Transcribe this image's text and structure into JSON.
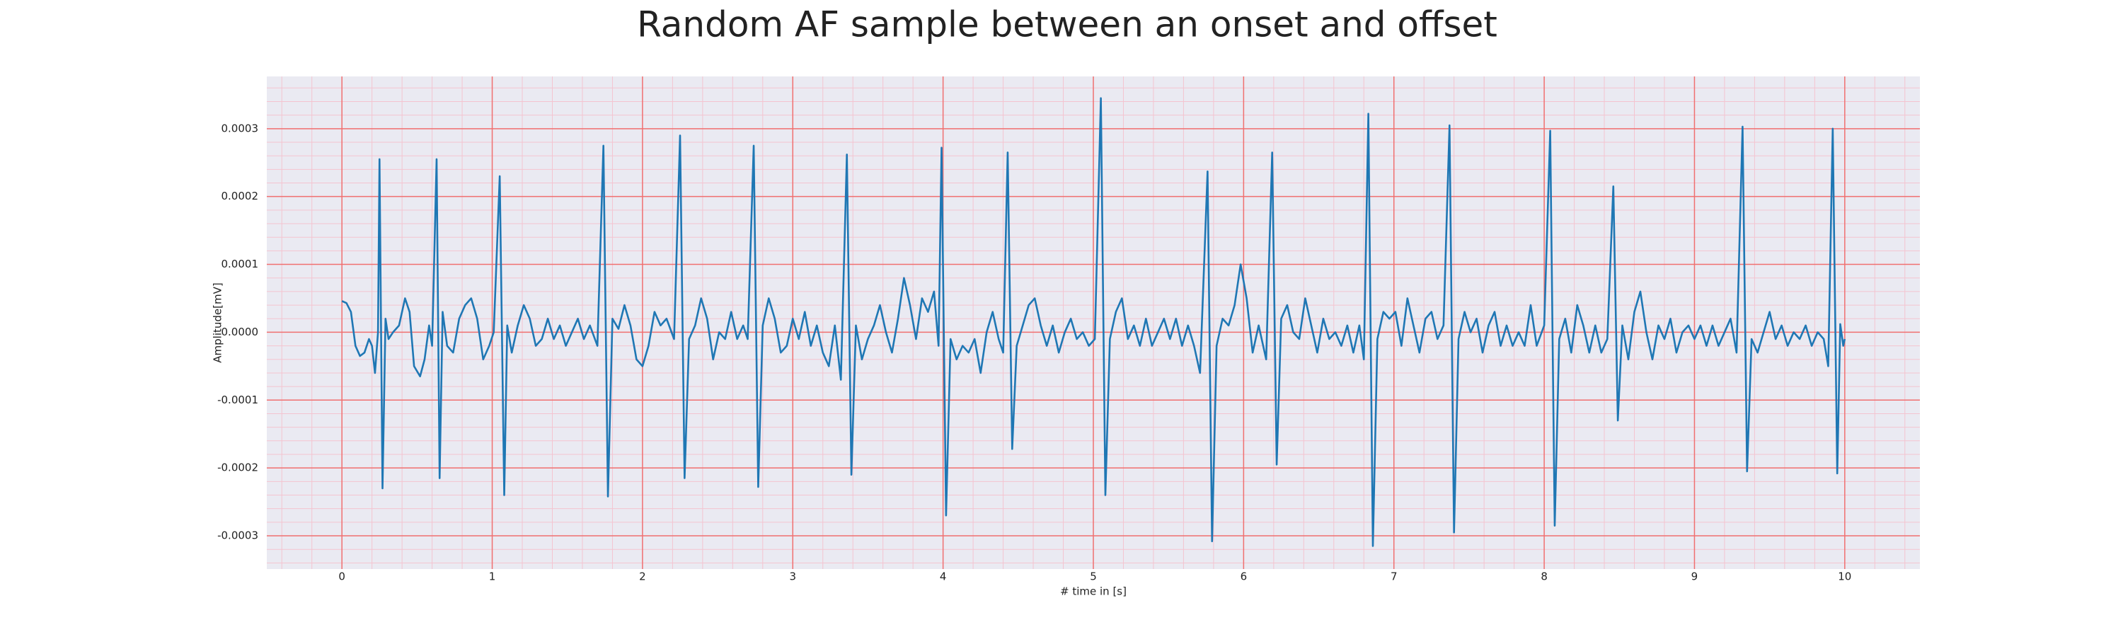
{
  "chart_data": {
    "type": "line",
    "title": "Random AF sample between an onset and offset",
    "xlabel": "# time in [s]",
    "ylabel": "Amplitude[mV]",
    "xlim": [
      -0.5,
      10.5
    ],
    "ylim": [
      -0.000349,
      0.000377
    ],
    "xticks": [
      0,
      1,
      2,
      3,
      4,
      5,
      6,
      7,
      8,
      9,
      10
    ],
    "yticks": [
      -0.0003,
      -0.0002,
      -0.0001,
      {
        "value": 0,
        "label": "0.0000"
      },
      0.0001,
      0.0002,
      0.0003
    ],
    "grid": true,
    "minor_grid": true,
    "grid_color": "#f07070",
    "minor_grid_color": "#f4c4d0",
    "background": "#eaeaf2",
    "x": [
      0.0,
      0.03,
      0.06,
      0.09,
      0.12,
      0.15,
      0.18,
      0.2,
      0.22,
      0.24,
      0.25,
      0.27,
      0.29,
      0.31,
      0.34,
      0.38,
      0.42,
      0.45,
      0.48,
      0.52,
      0.55,
      0.58,
      0.6,
      0.63,
      0.65,
      0.67,
      0.7,
      0.74,
      0.78,
      0.82,
      0.86,
      0.9,
      0.94,
      0.98,
      1.01,
      1.05,
      1.08,
      1.1,
      1.13,
      1.17,
      1.21,
      1.25,
      1.29,
      1.33,
      1.37,
      1.41,
      1.45,
      1.49,
      1.53,
      1.57,
      1.61,
      1.65,
      1.7,
      1.74,
      1.77,
      1.8,
      1.84,
      1.88,
      1.92,
      1.96,
      2.0,
      2.04,
      2.08,
      2.12,
      2.16,
      2.21,
      2.25,
      2.28,
      2.31,
      2.35,
      2.39,
      2.43,
      2.47,
      2.51,
      2.55,
      2.59,
      2.63,
      2.67,
      2.7,
      2.74,
      2.77,
      2.8,
      2.84,
      2.88,
      2.92,
      2.96,
      3.0,
      3.04,
      3.08,
      3.12,
      3.16,
      3.2,
      3.24,
      3.28,
      3.32,
      3.36,
      3.39,
      3.42,
      3.46,
      3.5,
      3.54,
      3.58,
      3.62,
      3.66,
      3.7,
      3.74,
      3.78,
      3.82,
      3.86,
      3.9,
      3.94,
      3.97,
      3.99,
      4.02,
      4.05,
      4.09,
      4.13,
      4.17,
      4.21,
      4.25,
      4.29,
      4.33,
      4.37,
      4.4,
      4.43,
      4.46,
      4.49,
      4.53,
      4.57,
      4.61,
      4.65,
      4.69,
      4.73,
      4.77,
      4.81,
      4.85,
      4.89,
      4.93,
      4.97,
      5.01,
      5.05,
      5.08,
      5.11,
      5.15,
      5.19,
      5.23,
      5.27,
      5.31,
      5.35,
      5.39,
      5.43,
      5.47,
      5.51,
      5.55,
      5.59,
      5.63,
      5.67,
      5.71,
      5.76,
      5.79,
      5.82,
      5.86,
      5.9,
      5.94,
      5.98,
      6.02,
      6.06,
      6.1,
      6.15,
      6.19,
      6.22,
      6.25,
      6.29,
      6.33,
      6.37,
      6.41,
      6.45,
      6.49,
      6.53,
      6.57,
      6.61,
      6.65,
      6.69,
      6.73,
      6.77,
      6.8,
      6.83,
      6.86,
      6.89,
      6.93,
      6.97,
      7.01,
      7.05,
      7.09,
      7.13,
      7.17,
      7.21,
      7.25,
      7.29,
      7.33,
      7.37,
      7.4,
      7.43,
      7.47,
      7.51,
      7.55,
      7.59,
      7.63,
      7.67,
      7.71,
      7.75,
      7.79,
      7.83,
      7.87,
      7.91,
      7.95,
      8.0,
      8.04,
      8.07,
      8.1,
      8.14,
      8.18,
      8.22,
      8.26,
      8.3,
      8.34,
      8.38,
      8.42,
      8.46,
      8.49,
      8.52,
      8.56,
      8.6,
      8.64,
      8.68,
      8.72,
      8.76,
      8.8,
      8.84,
      8.88,
      8.92,
      8.96,
      9.0,
      9.04,
      9.08,
      9.12,
      9.16,
      9.2,
      9.24,
      9.28,
      9.32,
      9.35,
      9.38,
      9.42,
      9.46,
      9.5,
      9.54,
      9.58,
      9.62,
      9.66,
      9.7,
      9.74,
      9.78,
      9.82,
      9.86,
      9.89,
      9.92,
      9.95,
      9.97,
      9.99,
      10.0
    ],
    "series": [
      {
        "color": "#1f77b4",
        "values": [
          4.6e-05,
          4.3e-05,
          3e-05,
          -2e-05,
          -3.5e-05,
          -3e-05,
          -1e-05,
          -2e-05,
          -6e-05,
          0.0,
          0.000255,
          -0.00023,
          2e-05,
          -1e-05,
          0.0,
          1e-05,
          5e-05,
          3e-05,
          -5e-05,
          -6.5e-05,
          -4e-05,
          1e-05,
          -2e-05,
          0.000255,
          -0.000215,
          3e-05,
          -2e-05,
          -3e-05,
          2e-05,
          4e-05,
          5e-05,
          2e-05,
          -4e-05,
          -2e-05,
          0.0,
          0.00023,
          -0.00024,
          1e-05,
          -3e-05,
          1e-05,
          4e-05,
          2e-05,
          -2e-05,
          -1e-05,
          2e-05,
          -1e-05,
          1e-05,
          -2e-05,
          0.0,
          2e-05,
          -1e-05,
          1e-05,
          -2e-05,
          0.000275,
          -0.000242,
          2e-05,
          5e-06,
          4e-05,
          1e-05,
          -4e-05,
          -5e-05,
          -2e-05,
          3e-05,
          1e-05,
          2e-05,
          -1e-05,
          0.00029,
          -0.000215,
          -1e-05,
          1e-05,
          5e-05,
          2e-05,
          -4e-05,
          0.0,
          -1e-05,
          3e-05,
          -1e-05,
          1e-05,
          -1e-05,
          0.000275,
          -0.000228,
          1e-05,
          5e-05,
          2e-05,
          -3e-05,
          -2e-05,
          2e-05,
          -1e-05,
          3e-05,
          -2e-05,
          1e-05,
          -3e-05,
          -5e-05,
          1e-05,
          -7e-05,
          0.000262,
          -0.00021,
          1e-05,
          -4e-05,
          -1e-05,
          1e-05,
          4e-05,
          0.0,
          -3e-05,
          2e-05,
          8e-05,
          4e-05,
          -1e-05,
          5e-05,
          3e-05,
          6e-05,
          -2e-05,
          0.000272,
          -0.00027,
          -1e-05,
          -4e-05,
          -2e-05,
          -3e-05,
          -1e-05,
          -6e-05,
          0.0,
          3e-05,
          -1e-05,
          -3e-05,
          0.000265,
          -0.000172,
          -2e-05,
          1e-05,
          4e-05,
          5e-05,
          1e-05,
          -2e-05,
          1e-05,
          -3e-05,
          0.0,
          2e-05,
          -1e-05,
          0.0,
          -2e-05,
          -1e-05,
          0.000345,
          -0.00024,
          -1e-05,
          3e-05,
          5e-05,
          -1e-05,
          1e-05,
          -2e-05,
          2e-05,
          -2e-05,
          0.0,
          2e-05,
          -1e-05,
          2e-05,
          -2e-05,
          1e-05,
          -2e-05,
          -6e-05,
          0.000237,
          -0.000308,
          -2e-05,
          2e-05,
          1e-05,
          4e-05,
          0.0001,
          5e-05,
          -3e-05,
          1e-05,
          -4e-05,
          0.000265,
          -0.000195,
          2e-05,
          4e-05,
          0.0,
          -1e-05,
          5e-05,
          1e-05,
          -3e-05,
          2e-05,
          -1e-05,
          0.0,
          -2e-05,
          1e-05,
          -3e-05,
          1e-05,
          -4e-05,
          0.000322,
          -0.000315,
          -1e-05,
          3e-05,
          2e-05,
          3e-05,
          -2e-05,
          5e-05,
          1e-05,
          -3e-05,
          2e-05,
          3e-05,
          -1e-05,
          1e-05,
          0.000305,
          -0.000295,
          -1e-05,
          3e-05,
          0.0,
          2e-05,
          -3e-05,
          1e-05,
          3e-05,
          -2e-05,
          1e-05,
          -2e-05,
          0.0,
          -2e-05,
          4e-05,
          -2e-05,
          1e-05,
          0.000297,
          -0.000285,
          -1e-05,
          2e-05,
          -3e-05,
          4e-05,
          1e-05,
          -3e-05,
          1e-05,
          -3e-05,
          -1e-05,
          0.000215,
          -0.00013,
          1e-05,
          -4e-05,
          3e-05,
          6e-05,
          0.0,
          -4e-05,
          1e-05,
          -1e-05,
          2e-05,
          -3e-05,
          0.0,
          1e-05,
          -1e-05,
          1e-05,
          -2e-05,
          1e-05,
          -2e-05,
          0.0,
          2e-05,
          -3e-05,
          0.000303,
          -0.000205,
          -1e-05,
          -3e-05,
          0.0,
          3e-05,
          -1e-05,
          1e-05,
          -2e-05,
          0.0,
          -1e-05,
          1e-05,
          -2e-05,
          0.0,
          -1e-05,
          -5e-05,
          0.0003,
          -0.000208,
          1.2e-05,
          -2e-05,
          -1e-05
        ]
      }
    ]
  }
}
